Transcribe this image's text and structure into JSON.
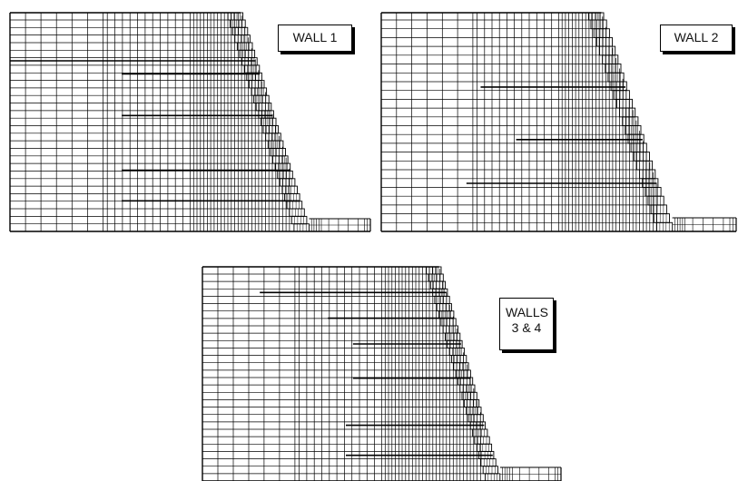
{
  "panels": [
    {
      "id": "wall-1",
      "label_lines": [
        "WALL 1"
      ]
    },
    {
      "id": "wall-2",
      "label_lines": [
        "WALL 2"
      ]
    },
    {
      "id": "walls-3-4",
      "label_lines": [
        "WALLS",
        "3 & 4"
      ]
    }
  ],
  "colors": {
    "line": "#000000",
    "background": "#ffffff",
    "label_shadow": "#000000"
  }
}
